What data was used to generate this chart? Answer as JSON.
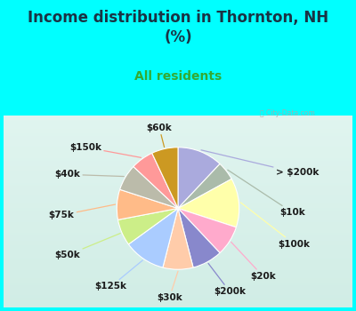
{
  "title": "Income distribution in Thornton, NH\n(%)",
  "subtitle": "All residents",
  "title_color": "#1a3344",
  "subtitle_color": "#33aa33",
  "bg_top": "#00ffff",
  "bg_chart_top": "#e8f8f5",
  "bg_chart_bottom": "#d0eee8",
  "watermark": "City-Data.com",
  "labels": [
    "> $200k",
    "$10k",
    "$100k",
    "$20k",
    "$200k",
    "$30k",
    "$125k",
    "$50k",
    "$75k",
    "$40k",
    "$150k",
    "$60k"
  ],
  "values": [
    12,
    5,
    13,
    8,
    8,
    8,
    11,
    7,
    8,
    7,
    6,
    7
  ],
  "colors": [
    "#aaaadd",
    "#aabbaa",
    "#ffffaa",
    "#ffaacc",
    "#8888cc",
    "#ffccaa",
    "#aaccff",
    "#ccee88",
    "#ffbb88",
    "#bbbbaa",
    "#ff9999",
    "#cc9922"
  ],
  "startangle": 90,
  "label_fontsize": 7.5,
  "title_fontsize": 12,
  "subtitle_fontsize": 10
}
